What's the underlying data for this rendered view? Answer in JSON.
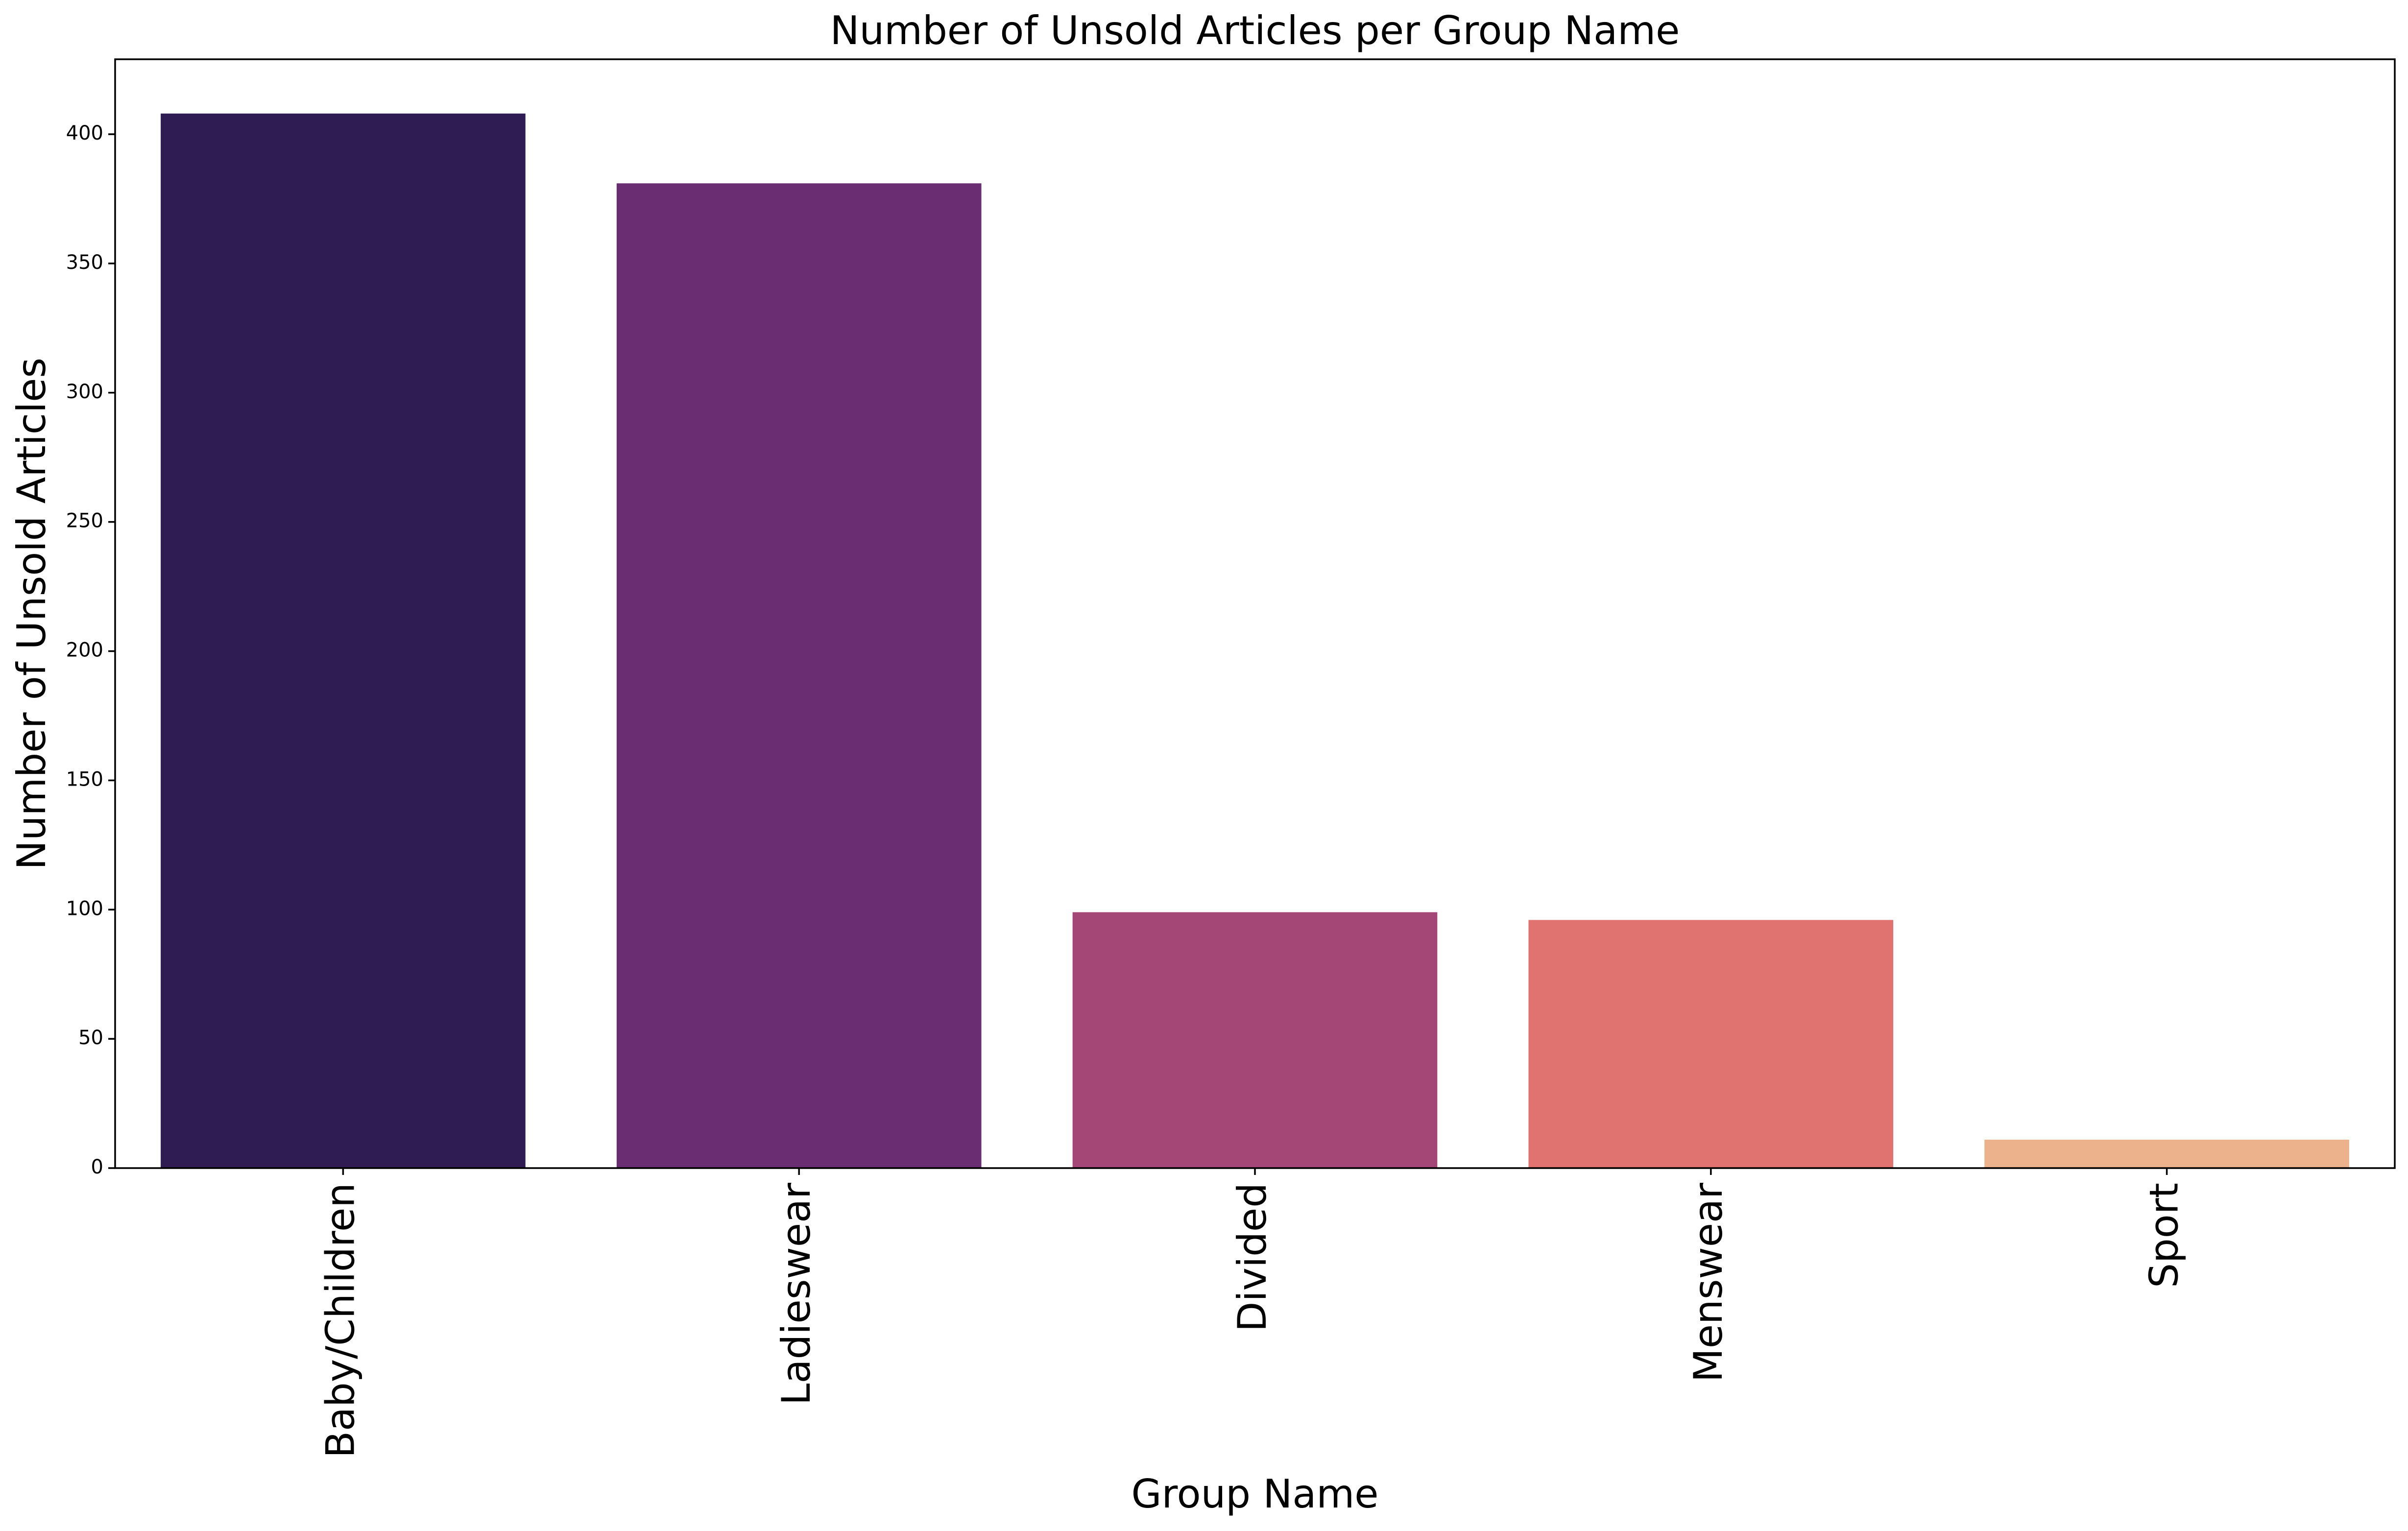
{
  "chart_data": {
    "type": "bar",
    "title": "Number of Unsold Articles per Group Name",
    "xlabel": "Group Name",
    "ylabel": "Number of Unsold Articles",
    "categories": [
      "Baby/Children",
      "Ladieswear",
      "Divided",
      "Menswear",
      "Sport"
    ],
    "values": [
      408,
      381,
      99,
      96,
      11
    ],
    "colors": [
      "#2f1c53",
      "#6a2d72",
      "#a54776",
      "#e07270",
      "#ecb28b"
    ],
    "ylim": [
      0,
      429
    ],
    "yticks": [
      0,
      50,
      100,
      150,
      200,
      250,
      300,
      350,
      400
    ],
    "grid": false,
    "legend": "none"
  }
}
